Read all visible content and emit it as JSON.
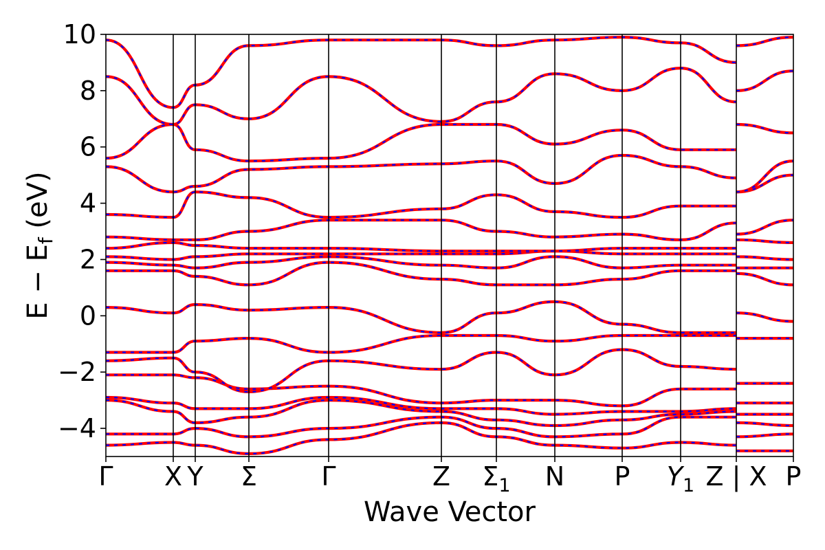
{
  "chart_data": {
    "type": "line",
    "title": "",
    "xlabel": "Wave Vector",
    "ylabel": "E − E_f (eV)",
    "ylabel_main": "E − E",
    "ylabel_sub": "f",
    "ylabel_unit": " (eV)",
    "ylim": [
      -5,
      10
    ],
    "xlim": [
      0,
      1
    ],
    "yticks": [
      -4,
      -2,
      0,
      2,
      4,
      6,
      8,
      10
    ],
    "ytick_labels": [
      "−4",
      "−2",
      "0",
      "2",
      "4",
      "6",
      "8",
      "10"
    ],
    "grid": false,
    "legend": "none",
    "colors": {
      "band_a": "#ff0000",
      "band_b": "#0000ff",
      "axis": "#000000"
    },
    "kpoints": [
      {
        "name": "gamma-1",
        "label": "Γ",
        "sub": "",
        "italic": false,
        "x": 0.0
      },
      {
        "name": "x-1",
        "label": "X",
        "sub": "",
        "italic": false,
        "x": 0.098
      },
      {
        "name": "y",
        "label": "Y",
        "sub": "",
        "italic": false,
        "x": 0.13
      },
      {
        "name": "sigma",
        "label": "Σ",
        "sub": "",
        "italic": false,
        "x": 0.208
      },
      {
        "name": "gamma-2",
        "label": "Γ",
        "sub": "",
        "italic": false,
        "x": 0.324
      },
      {
        "name": "z-1",
        "label": "Z",
        "sub": "",
        "italic": false,
        "x": 0.488
      },
      {
        "name": "sigma-1",
        "label": "Σ",
        "sub": "1",
        "italic": false,
        "x": 0.568
      },
      {
        "name": "n",
        "label": "N",
        "sub": "",
        "italic": false,
        "x": 0.653
      },
      {
        "name": "p-1",
        "label": "P",
        "sub": "",
        "italic": false,
        "x": 0.751
      },
      {
        "name": "y-1",
        "label": "Y",
        "sub": "1",
        "italic": true,
        "x": 0.836
      },
      {
        "name": "z-2",
        "label": "Z",
        "sub": "",
        "italic": false,
        "x": 0.917
      },
      {
        "name": "x-2",
        "label": "X",
        "sub": "",
        "italic": false,
        "x": 0.917
      },
      {
        "name": "p-2",
        "label": "P",
        "sub": "",
        "italic": false,
        "x": 1.0
      }
    ],
    "bands": [
      {
        "name": "band-1",
        "x": [
          0,
          0.098,
          0.13,
          0.208,
          0.324,
          0.488,
          0.568,
          0.653,
          0.751,
          0.836,
          0.917,
          0.917,
          1.0
        ],
        "y": [
          -4.6,
          -4.5,
          -4.6,
          -4.9,
          -4.4,
          -3.8,
          -4.3,
          -4.6,
          -4.7,
          -4.5,
          -4.6,
          -4.8,
          -4.8
        ]
      },
      {
        "name": "band-2",
        "x": [
          0,
          0.098,
          0.13,
          0.208,
          0.324,
          0.488,
          0.568,
          0.653,
          0.751,
          0.836,
          0.917,
          0.917,
          1.0
        ],
        "y": [
          -4.2,
          -4.2,
          -4.0,
          -4.3,
          -4.0,
          -3.6,
          -4.0,
          -4.3,
          -4.2,
          -3.6,
          -3.6,
          -4.3,
          -4.2
        ]
      },
      {
        "name": "band-3",
        "x": [
          0,
          0.098,
          0.13,
          0.208,
          0.324,
          0.488,
          0.568,
          0.653,
          0.751,
          0.836,
          0.917,
          0.917,
          1.0
        ],
        "y": [
          -3.0,
          -3.4,
          -3.8,
          -3.6,
          -3.0,
          -3.4,
          -3.7,
          -3.9,
          -3.7,
          -3.5,
          -3.4,
          -3.8,
          -3.9
        ]
      },
      {
        "name": "band-4",
        "x": [
          0,
          0.098,
          0.13,
          0.208,
          0.324,
          0.488,
          0.568,
          0.653,
          0.751,
          0.836,
          0.917,
          0.917,
          1.0
        ],
        "y": [
          -2.9,
          -3.1,
          -3.3,
          -3.3,
          -2.9,
          -3.3,
          -3.3,
          -3.5,
          -3.4,
          -3.4,
          -3.3,
          -3.5,
          -3.5
        ]
      },
      {
        "name": "band-5",
        "x": [
          0,
          0.098,
          0.13,
          0.208,
          0.324,
          0.488,
          0.568,
          0.653,
          0.751,
          0.836,
          0.917,
          0.917,
          1.0
        ],
        "y": [
          -2.1,
          -2.1,
          -2.2,
          -2.6,
          -2.5,
          -3.1,
          -3.0,
          -3.0,
          -3.2,
          -2.6,
          -2.6,
          -3.1,
          -3.1
        ]
      },
      {
        "name": "band-6",
        "x": [
          0,
          0.098,
          0.13,
          0.208,
          0.324,
          0.488,
          0.568,
          0.653,
          0.751,
          0.836,
          0.917,
          0.917,
          1.0
        ],
        "y": [
          -1.6,
          -1.5,
          -2.0,
          -2.7,
          -1.6,
          -1.9,
          -1.3,
          -2.1,
          -1.2,
          -1.8,
          -1.9,
          -2.4,
          -2.4
        ]
      },
      {
        "name": "band-7",
        "x": [
          0,
          0.098,
          0.13,
          0.208,
          0.324,
          0.488,
          0.568,
          0.653,
          0.751,
          0.836,
          0.917,
          0.917,
          1.0
        ],
        "y": [
          -1.3,
          -1.3,
          -0.9,
          -0.8,
          -1.3,
          -0.7,
          -0.7,
          -0.9,
          -0.7,
          -0.7,
          -0.7,
          -0.8,
          -0.8
        ]
      },
      {
        "name": "band-8",
        "x": [
          0,
          0.098,
          0.13,
          0.208,
          0.324,
          0.488,
          0.568,
          0.653,
          0.751,
          0.836,
          0.917,
          0.917,
          1.0
        ],
        "y": [
          0.3,
          0.1,
          0.4,
          0.2,
          0.3,
          -0.6,
          0.1,
          0.5,
          -0.3,
          -0.6,
          -0.6,
          0.1,
          -0.2
        ]
      },
      {
        "name": "band-9",
        "x": [
          0,
          0.098,
          0.13,
          0.208,
          0.324,
          0.488,
          0.568,
          0.653,
          0.751,
          0.836,
          0.917,
          0.917,
          1.0
        ],
        "y": [
          1.6,
          1.6,
          1.4,
          1.1,
          1.9,
          1.3,
          1.1,
          1.1,
          1.3,
          1.6,
          1.6,
          1.5,
          1.1
        ]
      },
      {
        "name": "band-10",
        "x": [
          0,
          0.098,
          0.13,
          0.208,
          0.324,
          0.488,
          0.568,
          0.653,
          0.751,
          0.836,
          0.917,
          0.917,
          1.0
        ],
        "y": [
          1.9,
          1.8,
          1.7,
          1.9,
          2.1,
          1.8,
          1.7,
          2.1,
          1.7,
          1.8,
          1.8,
          1.7,
          1.7
        ]
      },
      {
        "name": "band-11",
        "x": [
          0,
          0.098,
          0.13,
          0.208,
          0.324,
          0.488,
          0.568,
          0.653,
          0.751,
          0.836,
          0.917,
          0.917,
          1.0
        ],
        "y": [
          2.1,
          2.0,
          2.1,
          2.2,
          2.2,
          2.2,
          2.2,
          2.3,
          2.2,
          2.2,
          2.2,
          2.1,
          2.0
        ]
      },
      {
        "name": "band-12",
        "x": [
          0,
          0.098,
          0.13,
          0.208,
          0.324,
          0.488,
          0.568,
          0.653,
          0.751,
          0.836,
          0.917,
          0.917,
          1.0
        ],
        "y": [
          2.4,
          2.6,
          2.5,
          2.4,
          2.4,
          2.3,
          2.3,
          2.3,
          2.4,
          2.4,
          2.4,
          2.7,
          2.6
        ]
      },
      {
        "name": "band-13",
        "x": [
          0,
          0.098,
          0.13,
          0.208,
          0.324,
          0.488,
          0.568,
          0.653,
          0.751,
          0.836,
          0.917,
          0.917,
          1.0
        ],
        "y": [
          2.8,
          2.7,
          2.7,
          3.0,
          3.4,
          3.4,
          3.0,
          2.8,
          2.9,
          2.7,
          3.3,
          2.9,
          3.4
        ]
      },
      {
        "name": "band-14",
        "x": [
          0,
          0.098,
          0.13,
          0.208,
          0.324,
          0.488,
          0.568,
          0.653,
          0.751,
          0.836,
          0.917,
          0.917,
          1.0
        ],
        "y": [
          3.6,
          3.5,
          4.4,
          4.2,
          3.5,
          3.8,
          4.3,
          3.7,
          3.5,
          3.9,
          3.9,
          4.4,
          5.0
        ]
      },
      {
        "name": "band-15",
        "x": [
          0,
          0.098,
          0.13,
          0.208,
          0.324,
          0.488,
          0.568,
          0.653,
          0.751,
          0.836,
          0.917,
          0.917,
          1.0
        ],
        "y": [
          5.3,
          4.4,
          4.6,
          5.2,
          5.3,
          5.4,
          5.5,
          4.7,
          5.7,
          5.3,
          4.9,
          4.4,
          5.5
        ]
      },
      {
        "name": "band-16",
        "x": [
          0,
          0.098,
          0.13,
          0.208,
          0.324,
          0.488,
          0.568,
          0.653,
          0.751,
          0.836,
          0.917,
          0.917,
          1.0
        ],
        "y": [
          5.6,
          6.8,
          5.9,
          5.5,
          5.6,
          6.8,
          6.8,
          6.1,
          6.6,
          5.9,
          5.9,
          6.8,
          6.5
        ]
      },
      {
        "name": "band-17",
        "x": [
          0,
          0.098,
          0.13,
          0.208,
          0.324,
          0.488,
          0.568,
          0.653,
          0.751,
          0.836,
          0.917,
          0.917,
          1.0
        ],
        "y": [
          8.5,
          6.8,
          7.5,
          7.0,
          8.5,
          6.9,
          7.6,
          8.6,
          8.0,
          8.8,
          7.6,
          8.0,
          8.7
        ]
      },
      {
        "name": "band-18",
        "x": [
          0,
          0.098,
          0.13,
          0.208,
          0.324,
          0.488,
          0.568,
          0.653,
          0.751,
          0.836,
          0.917,
          0.917,
          1.0
        ],
        "y": [
          9.8,
          7.4,
          8.2,
          9.6,
          9.8,
          9.8,
          9.6,
          9.8,
          9.9,
          9.7,
          9.0,
          9.6,
          9.9
        ]
      }
    ]
  }
}
